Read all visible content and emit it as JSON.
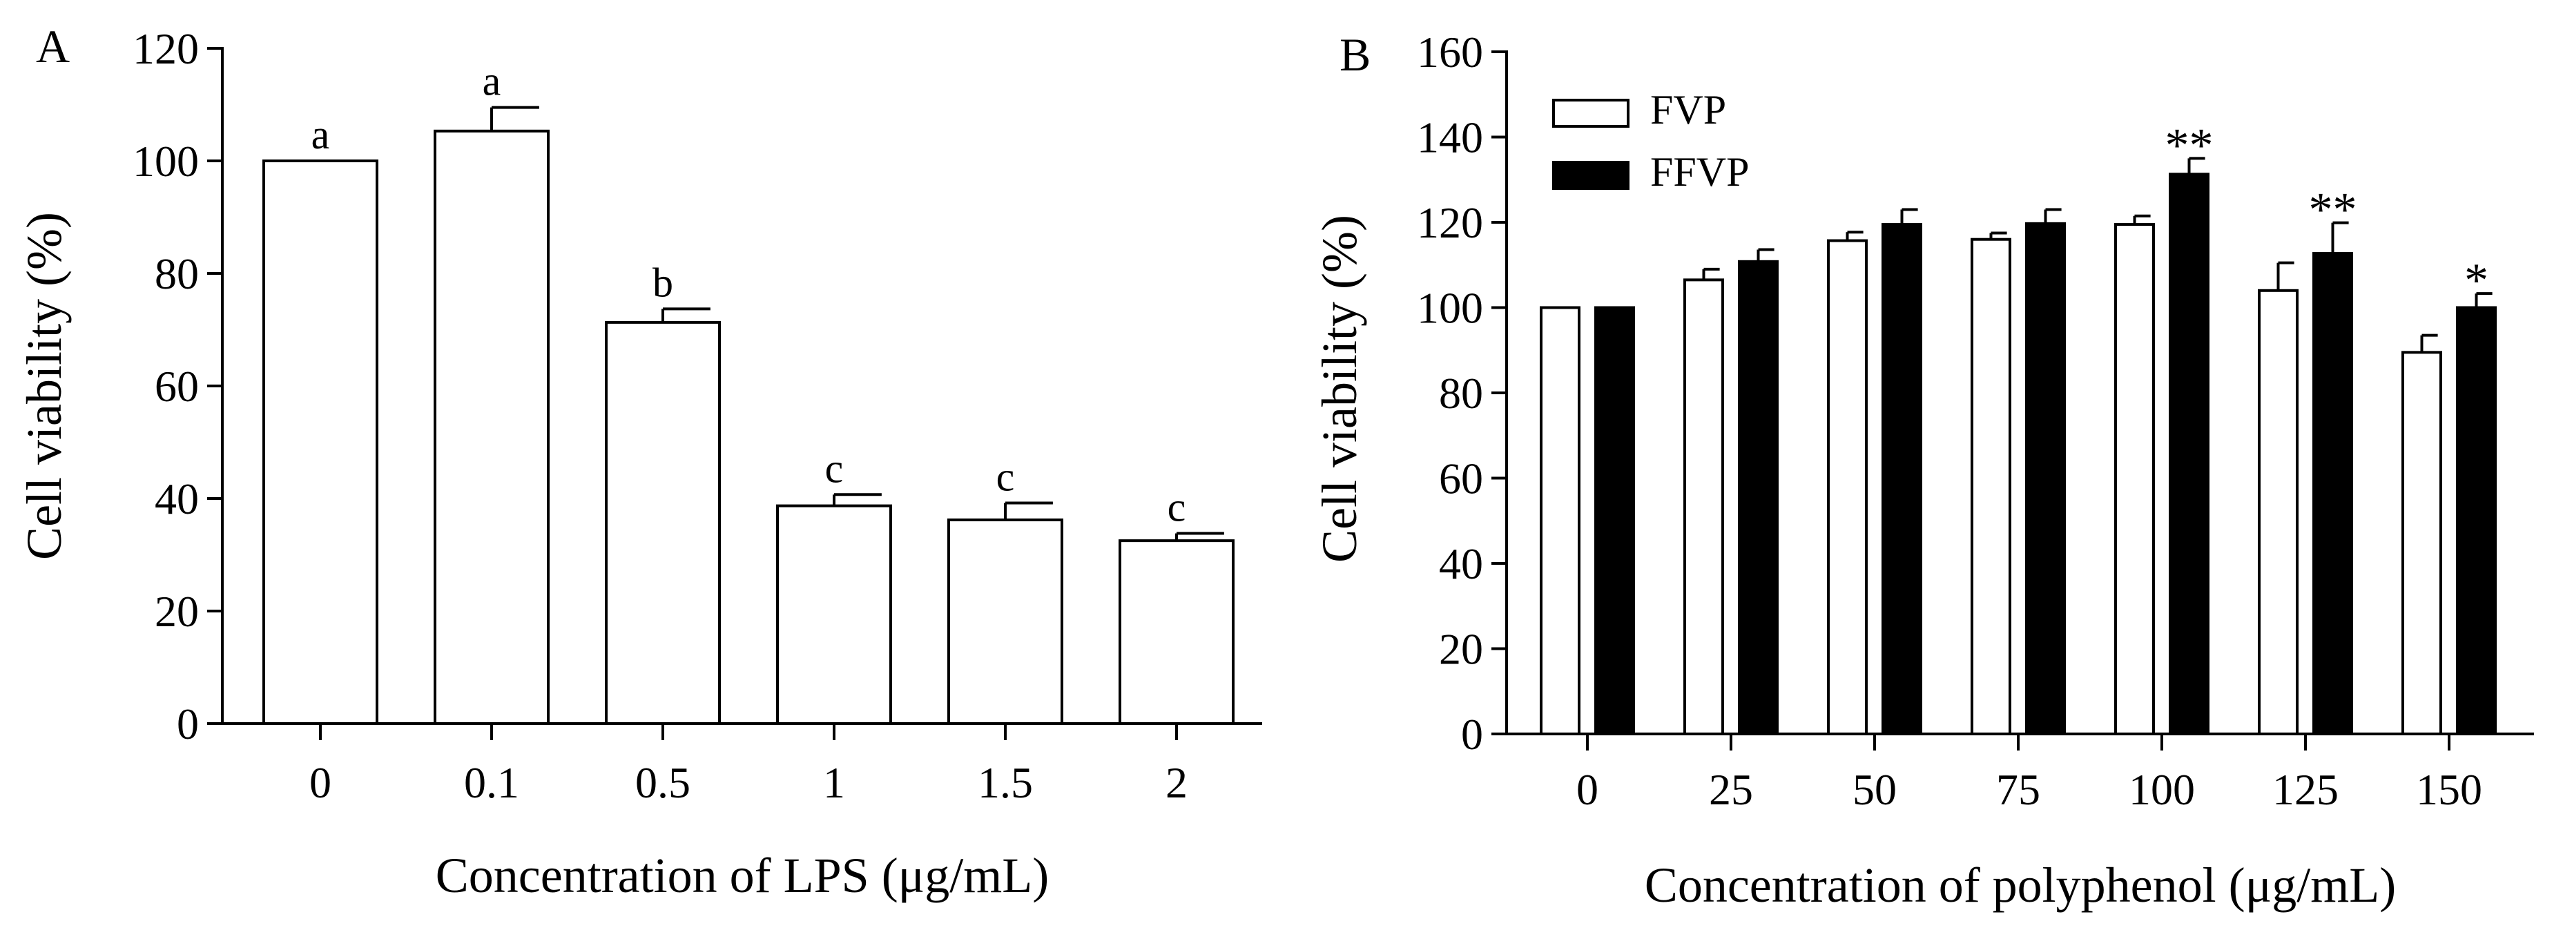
{
  "chart_data": [
    {
      "type": "bar",
      "panel_label": "A",
      "categories": [
        "0",
        "0.1",
        "0.5",
        "1",
        "1.5",
        "2"
      ],
      "series": [
        {
          "name": "",
          "color": "#ffffff",
          "values": [
            100,
            105.3,
            71.3,
            38.7,
            36.2,
            32.5
          ],
          "errors": [
            0,
            4.2,
            2.4,
            2.0,
            3.0,
            1.3
          ]
        }
      ],
      "annotations": [
        "a",
        "a",
        "b",
        "c",
        "c",
        "c"
      ],
      "xlabel": "Concentration of LPS (μg/mL)",
      "ylabel": "Cell viability (%)",
      "ylim": [
        0,
        120
      ],
      "yticks": [
        "0",
        "20",
        "40",
        "60",
        "80",
        "100",
        "120"
      ]
    },
    {
      "type": "bar",
      "panel_label": "B",
      "categories": [
        "0",
        "25",
        "50",
        "75",
        "100",
        "125",
        "150"
      ],
      "series": [
        {
          "name": "FVP",
          "color": "#ffffff",
          "values": [
            100,
            106.5,
            115.7,
            116.0,
            119.5,
            104.0,
            89.5
          ],
          "errors": [
            0,
            2.5,
            2.0,
            1.5,
            2.0,
            6.5,
            4.0
          ]
        },
        {
          "name": "FFVP",
          "color": "#000000",
          "values": [
            100,
            110.8,
            119.5,
            119.7,
            131.3,
            112.7,
            100.0
          ],
          "errors": [
            0,
            2.8,
            3.5,
            3.3,
            3.7,
            7.2,
            3.3
          ]
        }
      ],
      "annotations": [
        "",
        "",
        "",
        "",
        "**",
        "**",
        "*"
      ],
      "xlabel": "Concentration of polyphenol (μg/mL)",
      "ylabel": "Cell viability (%)",
      "ylim": [
        0,
        160
      ],
      "yticks": [
        "0",
        "20",
        "40",
        "60",
        "80",
        "100",
        "120",
        "140",
        "160"
      ],
      "legend": "top-left"
    }
  ]
}
